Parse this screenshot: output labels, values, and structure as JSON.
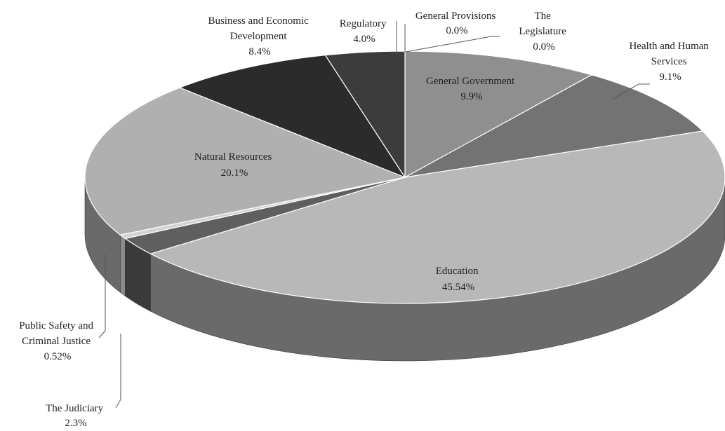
{
  "chart_data": {
    "type": "pie",
    "style": "3d",
    "slices": [
      {
        "key": "general-provisions",
        "name": "General Provisions",
        "value": "0.0%",
        "percent": 0.0,
        "color": "#a9a9a9",
        "side_color": "#6e6e6e"
      },
      {
        "key": "the-legislature",
        "name": "The Legislature",
        "value": "0.0%",
        "percent": 0.0,
        "color": "#a9a9a9",
        "side_color": "#6e6e6e"
      },
      {
        "key": "general-government",
        "name": "General Government",
        "value": "9.9%",
        "percent": 9.9,
        "color": "#8f8f8f",
        "side_color": "#5f5f5f"
      },
      {
        "key": "health-and-human-services",
        "name": "Health and Human Services",
        "value": "9.1%",
        "percent": 9.1,
        "color": "#737373",
        "side_color": "#4c4c4c"
      },
      {
        "key": "education",
        "name": "Education",
        "value": "45.54%",
        "percent": 45.54,
        "color": "#b8b8b8",
        "side_color": "#6a6a6a"
      },
      {
        "key": "the-judiciary",
        "name": "The Judiciary",
        "value": "2.3%",
        "percent": 2.3,
        "color": "#5f5f5f",
        "side_color": "#3a3a3a"
      },
      {
        "key": "public-safety-and-criminal-justice",
        "name": "Public Safety and Criminal Justice",
        "value": "0.52%",
        "percent": 0.52,
        "color": "#d2d2d2",
        "side_color": "#8a8a8a"
      },
      {
        "key": "natural-resources",
        "name": "Natural Resources",
        "value": "20.1%",
        "percent": 20.1,
        "color": "#b0b0b0",
        "side_color": "#6a6a6a"
      },
      {
        "key": "business-and-economic-development",
        "name": "Business and Economic Development",
        "value": "8.4%",
        "percent": 8.4,
        "color": "#2b2b2b",
        "side_color": "#1a1a1a"
      },
      {
        "key": "regulatory",
        "name": "Regulatory",
        "value": "4.0%",
        "percent": 4.0,
        "color": "#3c3c3c",
        "side_color": "#222222"
      }
    ],
    "labels": {
      "general_provisions": [
        "General Provisions",
        "0.0%"
      ],
      "the_legislature": [
        "The",
        "Legislature",
        "0.0%"
      ],
      "general_government": [
        "General Government",
        "9.9%"
      ],
      "health_and_human_services": [
        "Health and Human",
        "Services",
        "9.1%"
      ],
      "education": [
        "Education",
        "45.54%"
      ],
      "natural_resources": [
        "Natural Resources",
        "20.1%"
      ],
      "business_and_economic_development": [
        "Business and Economic",
        "Development",
        "8.4%"
      ],
      "regulatory": [
        "Regulatory",
        "4.0%"
      ],
      "public_safety_and_criminal_justice": [
        "Public Safety and",
        "Criminal Justice",
        "0.52%"
      ],
      "the_judiciary": [
        "The Judiciary",
        "2.3%"
      ]
    }
  }
}
